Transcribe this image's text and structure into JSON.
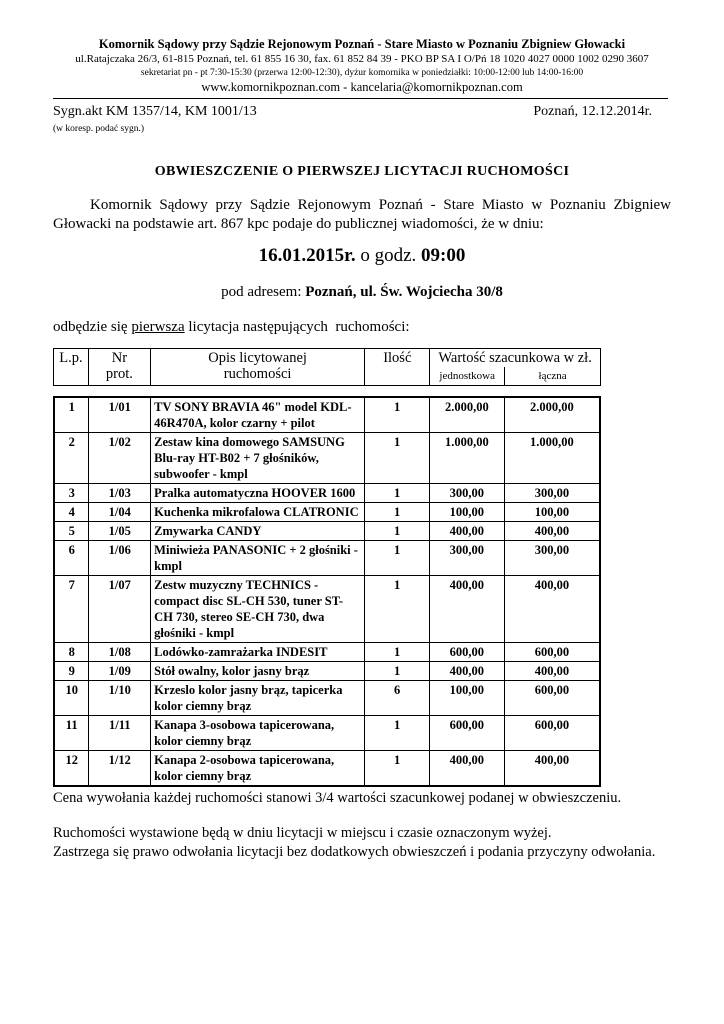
{
  "letterhead": {
    "name": "Komornik Sądowy przy Sądzie Rejonowym Poznań - Stare Miasto w Poznaniu Zbigniew Głowacki",
    "address": "ul.Ratajczaka 26/3, 61-815 Poznań, tel. 61 855 16 30, fax. 61 852 84 39 - PKO BP SA I O/Pń  18 1020 4027 0000 1002 0290 3607",
    "hours": "sekretariat  pn - pt 7:30-15:30 (przerwa 12:00-12:30), dyżur komornika w poniedziałki: 10:00-12:00 lub 14:00-16:00",
    "contact": "www.komornikpoznan.com  -  kancelaria@komornikpoznan.com"
  },
  "meta": {
    "sygn": "Sygn.akt KM 1357/14, KM 1001/13",
    "date": "Poznań, 12.12.2014r.",
    "note": "(w koresp. podać sygn.)"
  },
  "title": "OBWIESZCZENIE  O  PIERWSZEJ  LICYTACJI  RUCHOMOŚCI",
  "intro": "Komornik Sądowy przy Sądzie Rejonowym Poznań - Stare Miasto w Poznaniu Zbigniew Głowacki na podstawie art. 867 kpc podaje do publicznej wiadomości, że w dniu:",
  "when": {
    "date": "16.01.2015r.",
    "mid": " o godz. ",
    "time": "09:00"
  },
  "address": {
    "prefix": "pod adresem: ",
    "value": "Poznań, ul. Św. Wojciecha 30/8"
  },
  "lead": {
    "a": "odbędzie się ",
    "u": "pierwsza",
    "b": " licytacja następujących  ruchomości:"
  },
  "table": {
    "headers": {
      "lp": "L.p.",
      "nr1": "Nr",
      "nr2": "prot.",
      "opis1": "Opis licytowanej",
      "opis2": "ruchomości",
      "ilosc": "Ilość",
      "wartosc": "Wartość szacunkowa w zł.",
      "jedn": "jednostkowa",
      "lacz": "łączna"
    },
    "rows": [
      {
        "lp": "1",
        "nr": "1/01",
        "opis": "TV SONY BRAVIA 46\"  model KDL-46R470A, kolor czarny + pilot",
        "ilosc": "1",
        "jedn": "2.000,00",
        "lacz": "2.000,00"
      },
      {
        "lp": "2",
        "nr": "1/02",
        "opis": "Zestaw kina domowego SAMSUNG Blu-ray HT-B02 + 7 głośników, subwoofer  - kmpl",
        "ilosc": "1",
        "jedn": "1.000,00",
        "lacz": "1.000,00"
      },
      {
        "lp": "3",
        "nr": "1/03",
        "opis": "Pralka automatyczna HOOVER 1600",
        "ilosc": "1",
        "jedn": "300,00",
        "lacz": "300,00"
      },
      {
        "lp": "4",
        "nr": "1/04",
        "opis": "Kuchenka mikrofalowa CLATRONIC",
        "ilosc": "1",
        "jedn": "100,00",
        "lacz": "100,00"
      },
      {
        "lp": "5",
        "nr": "1/05",
        "opis": "Zmywarka CANDY",
        "ilosc": "1",
        "jedn": "400,00",
        "lacz": "400,00"
      },
      {
        "lp": "6",
        "nr": "1/06",
        "opis": "Miniwieża PANASONIC + 2 głośniki  - kmpl",
        "ilosc": "1",
        "jedn": "300,00",
        "lacz": "300,00"
      },
      {
        "lp": "7",
        "nr": "1/07",
        "opis": "Zestw muzyczny TECHNICS - compact disc SL-CH 530, tuner ST-CH 730, stereo SE-CH 730, dwa głośniki  - kmpl",
        "ilosc": "1",
        "jedn": "400,00",
        "lacz": "400,00"
      },
      {
        "lp": "8",
        "nr": "1/08",
        "opis": "Lodówko-zamrażarka INDESIT",
        "ilosc": "1",
        "jedn": "600,00",
        "lacz": "600,00"
      },
      {
        "lp": "9",
        "nr": "1/09",
        "opis": "Stół owalny, kolor jasny brąz",
        "ilosc": "1",
        "jedn": "400,00",
        "lacz": "400,00"
      },
      {
        "lp": "10",
        "nr": "1/10",
        "opis": "Krzeslo kolor jasny brąz, tapicerka kolor ciemny brąz",
        "ilosc": "6",
        "jedn": "100,00",
        "lacz": "600,00"
      },
      {
        "lp": "11",
        "nr": "1/11",
        "opis": "Kanapa 3-osobowa tapicerowana, kolor ciemny brąz",
        "ilosc": "1",
        "jedn": "600,00",
        "lacz": "600,00"
      },
      {
        "lp": "12",
        "nr": "1/12",
        "opis": "Kanapa 2-osobowa tapicerowana, kolor ciemny brąz",
        "ilosc": "1",
        "jedn": "400,00",
        "lacz": "400,00"
      }
    ]
  },
  "footer": {
    "price": "Cena wywołania każdej ruchomości stanowi 3/4 wartości szacunkowej podanej w obwieszczeniu.",
    "line1": "Ruchomości wystawione będą w dniu licytacji w miejscu i czasie oznaczonym wyżej.",
    "line2": "Zastrzega się prawo odwołania licytacji bez dodatkowych obwieszczeń i podania przyczyny odwołania."
  }
}
